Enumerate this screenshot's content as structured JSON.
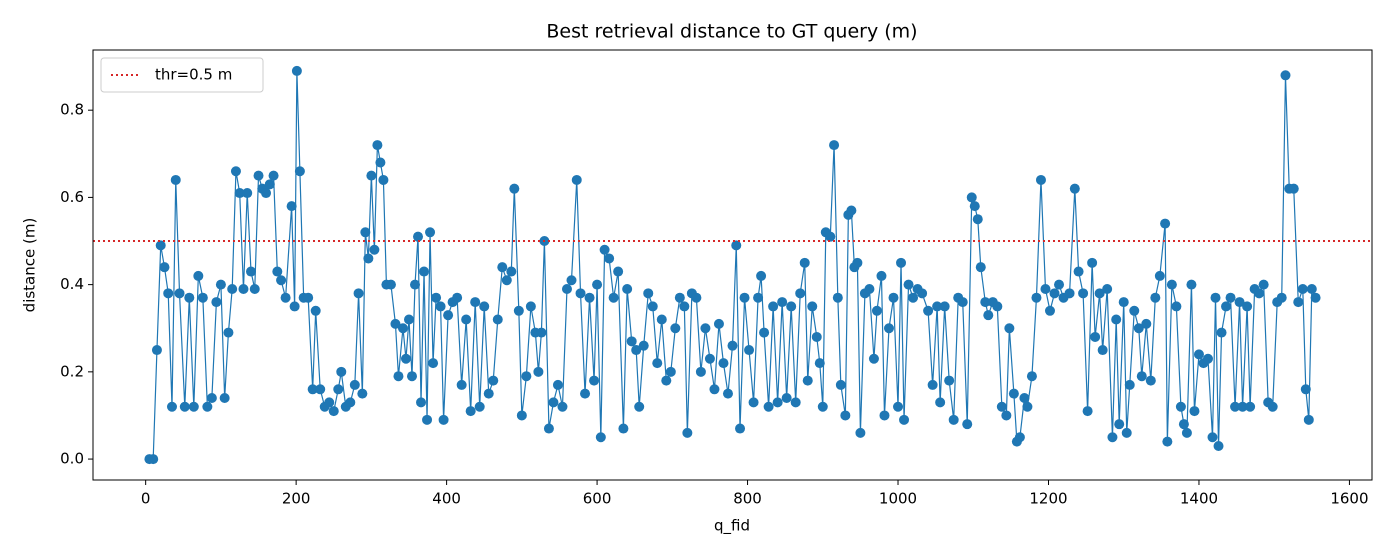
{
  "chart_data": {
    "type": "line",
    "title": "Best retrieval distance to GT query (m)",
    "x_label": "q_fid",
    "y_label": "distance (m)",
    "x": [
      5,
      10,
      15,
      20,
      25,
      30,
      35,
      40,
      45,
      52,
      58,
      64,
      70,
      76,
      82,
      88,
      94,
      100,
      105,
      110,
      115,
      120,
      125,
      130,
      135,
      140,
      145,
      150,
      155,
      160,
      165,
      170,
      175,
      180,
      186,
      194,
      198,
      201,
      205,
      210,
      216,
      222,
      226,
      232,
      238,
      244,
      250,
      256,
      260,
      266,
      272,
      278,
      283,
      288,
      292,
      296,
      300,
      304,
      308,
      312,
      316,
      320,
      326,
      332,
      336,
      342,
      346,
      350,
      354,
      358,
      362,
      366,
      370,
      374,
      378,
      382,
      386,
      392,
      396,
      402,
      408,
      414,
      420,
      426,
      432,
      438,
      444,
      450,
      456,
      462,
      468,
      474,
      480,
      486,
      490,
      496,
      500,
      506,
      512,
      518,
      522,
      526,
      530,
      536,
      542,
      548,
      554,
      560,
      566,
      573,
      578,
      584,
      590,
      596,
      600,
      605,
      610,
      616,
      622,
      628,
      635,
      640,
      646,
      652,
      656,
      662,
      668,
      674,
      680,
      686,
      692,
      698,
      704,
      710,
      716,
      720,
      726,
      732,
      738,
      744,
      750,
      756,
      762,
      768,
      774,
      780,
      785,
      790,
      796,
      802,
      808,
      814,
      818,
      822,
      828,
      834,
      840,
      846,
      852,
      858,
      864,
      870,
      876,
      880,
      886,
      892,
      896,
      900,
      904,
      910,
      915,
      920,
      924,
      930,
      934,
      938,
      942,
      946,
      950,
      956,
      962,
      968,
      972,
      978,
      982,
      988,
      994,
      1000,
      1004,
      1008,
      1014,
      1020,
      1026,
      1032,
      1040,
      1046,
      1052,
      1056,
      1062,
      1068,
      1074,
      1080,
      1086,
      1092,
      1098,
      1102,
      1106,
      1110,
      1116,
      1120,
      1126,
      1132,
      1138,
      1144,
      1148,
      1154,
      1158,
      1162,
      1168,
      1172,
      1178,
      1184,
      1190,
      1196,
      1202,
      1208,
      1214,
      1220,
      1228,
      1235,
      1240,
      1246,
      1252,
      1258,
      1262,
      1268,
      1272,
      1278,
      1285,
      1290,
      1294,
      1300,
      1304,
      1308,
      1314,
      1320,
      1324,
      1330,
      1336,
      1342,
      1348,
      1355,
      1358,
      1364,
      1370,
      1376,
      1380,
      1384,
      1390,
      1394,
      1400,
      1406,
      1412,
      1418,
      1422,
      1426,
      1430,
      1436,
      1442,
      1448,
      1454,
      1458,
      1464,
      1468,
      1474,
      1480,
      1486,
      1492,
      1498,
      1504,
      1510,
      1515,
      1520,
      1526,
      1532,
      1538,
      1542,
      1546,
      1550,
      1555
    ],
    "series": [
      {
        "color": "#1f77b4",
        "values": [
          0,
          0,
          0.25,
          0.49,
          0.44,
          0.38,
          0.12,
          0.64,
          0.38,
          0.12,
          0.37,
          0.12,
          0.42,
          0.37,
          0.12,
          0.14,
          0.36,
          0.4,
          0.14,
          0.29,
          0.39,
          0.66,
          0.61,
          0.39,
          0.61,
          0.43,
          0.39,
          0.65,
          0.62,
          0.61,
          0.63,
          0.65,
          0.43,
          0.41,
          0.37,
          0.58,
          0.35,
          0.89,
          0.66,
          0.37,
          0.37,
          0.16,
          0.34,
          0.16,
          0.12,
          0.13,
          0.11,
          0.16,
          0.2,
          0.12,
          0.13,
          0.17,
          0.38,
          0.15,
          0.52,
          0.46,
          0.65,
          0.48,
          0.72,
          0.68,
          0.64,
          0.4,
          0.4,
          0.31,
          0.19,
          0.3,
          0.23,
          0.32,
          0.19,
          0.4,
          0.51,
          0.13,
          0.43,
          0.09,
          0.52,
          0.22,
          0.37,
          0.35,
          0.09,
          0.33,
          0.36,
          0.37,
          0.17,
          0.32,
          0.11,
          0.36,
          0.12,
          0.35,
          0.15,
          0.18,
          0.32,
          0.44,
          0.41,
          0.43,
          0.62,
          0.34,
          0.1,
          0.19,
          0.35,
          0.29,
          0.2,
          0.29,
          0.5,
          0.07,
          0.13,
          0.17,
          0.12,
          0.39,
          0.41,
          0.64,
          0.38,
          0.15,
          0.37,
          0.18,
          0.4,
          0.05,
          0.48,
          0.46,
          0.37,
          0.43,
          0.07,
          0.39,
          0.27,
          0.25,
          0.12,
          0.26,
          0.38,
          0.35,
          0.22,
          0.32,
          0.18,
          0.2,
          0.3,
          0.37,
          0.35,
          0.06,
          0.38,
          0.37,
          0.2,
          0.3,
          0.23,
          0.16,
          0.31,
          0.22,
          0.15,
          0.26,
          0.49,
          0.07,
          0.37,
          0.25,
          0.13,
          0.37,
          0.42,
          0.29,
          0.12,
          0.35,
          0.13,
          0.36,
          0.14,
          0.35,
          0.13,
          0.38,
          0.45,
          0.18,
          0.35,
          0.28,
          0.22,
          0.12,
          0.52,
          0.51,
          0.72,
          0.37,
          0.17,
          0.1,
          0.56,
          0.57,
          0.44,
          0.45,
          0.06,
          0.38,
          0.39,
          0.23,
          0.34,
          0.42,
          0.1,
          0.3,
          0.37,
          0.12,
          0.45,
          0.09,
          0.4,
          0.37,
          0.39,
          0.38,
          0.34,
          0.17,
          0.35,
          0.13,
          0.35,
          0.18,
          0.09,
          0.37,
          0.36,
          0.08,
          0.6,
          0.58,
          0.55,
          0.44,
          0.36,
          0.33,
          0.36,
          0.35,
          0.12,
          0.1,
          0.3,
          0.15,
          0.04,
          0.05,
          0.14,
          0.12,
          0.19,
          0.37,
          0.64,
          0.39,
          0.34,
          0.38,
          0.4,
          0.37,
          0.38,
          0.62,
          0.43,
          0.38,
          0.11,
          0.45,
          0.28,
          0.38,
          0.25,
          0.39,
          0.05,
          0.32,
          0.08,
          0.36,
          0.06,
          0.17,
          0.34,
          0.3,
          0.19,
          0.31,
          0.18,
          0.37,
          0.42,
          0.54,
          0.04,
          0.4,
          0.35,
          0.12,
          0.08,
          0.06,
          0.4,
          0.11,
          0.24,
          0.22,
          0.23,
          0.05,
          0.37,
          0.03,
          0.29,
          0.35,
          0.37,
          0.12,
          0.36,
          0.12,
          0.35,
          0.12,
          0.39,
          0.38,
          0.4,
          0.13,
          0.12,
          0.36,
          0.37,
          0.88,
          0.62,
          0.62,
          0.36,
          0.39,
          0.16,
          0.09,
          0.39,
          0.37
        ]
      }
    ],
    "threshold": {
      "value": 0.5,
      "label": "thr=0.5 m",
      "color": "#d62728",
      "style": "dotted"
    },
    "legend": "upper left",
    "xlim": [
      -70,
      1630
    ],
    "xticks": [
      0,
      200,
      400,
      600,
      800,
      1000,
      1200,
      1400,
      1600
    ],
    "ylim": [
      -0.048,
      0.938
    ],
    "yticks": [
      {
        "value": 0,
        "label": "0.0"
      },
      0.2,
      0.4,
      0.6,
      0.8
    ],
    "grid": false
  }
}
